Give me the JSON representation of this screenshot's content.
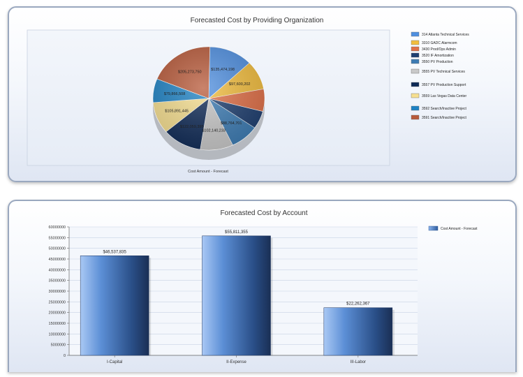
{
  "chart_data": [
    {
      "type": "pie",
      "title": "Forecasted Cost by Providing Organization",
      "xlabel": "Cost Amount - Forecast",
      "legend_position": "right",
      "slices": [
        {
          "name": "314 Atlanta Technical Services",
          "value": 135474198,
          "label": "$135,474,198",
          "color": "#4f8fe0"
        },
        {
          "name": "3310 GADC Alarmcom",
          "value": 97600202,
          "label": "$97,600,202",
          "color": "#f2bd3e"
        },
        {
          "name": "3430 Prod/Ops Admin",
          "value": 75000000,
          "label": "",
          "color": "#e07048"
        },
        {
          "name": "3520 IF Amortization",
          "value": 60000000,
          "label": "",
          "color": "#1f3f70"
        },
        {
          "name": "3550 PV Production",
          "value": 88764701,
          "label": "$88,764,701",
          "color": "#3d7cb4"
        },
        {
          "name": "3555 PV Technical Services",
          "value": 102140233,
          "label": "$102,140,233",
          "color": "#c9c9c9"
        },
        {
          "name": "3557 PV Production Support",
          "value": 122059395,
          "label": "$122,059,395",
          "color": "#0f2a56"
        },
        {
          "name": "3559 Las Vegas Data Center",
          "value": 105891445,
          "label": "$105,891,445",
          "color": "#f6df90"
        },
        {
          "name": "3592 Search/Inactive Project",
          "value": 79866508,
          "label": "$79,866,508",
          "color": "#1e82c4"
        },
        {
          "name": "3591 Search/Inactive Project",
          "value": 205273750,
          "label": "$205,273,750",
          "color": "#b85a3a"
        }
      ]
    },
    {
      "type": "bar",
      "title": "Forecasted Cost by Account",
      "categories": [
        "I-Capital",
        "II-Expense",
        "III-Labor"
      ],
      "series": [
        {
          "name": "Cost Amount - Forecast",
          "values": [
            46537835,
            55811355,
            22262367
          ],
          "labels": [
            "$46,537,835",
            "$55,811,355",
            "$22,262,367"
          ]
        }
      ],
      "ylim": [
        0,
        60000000
      ],
      "yticks": [
        "60000000",
        "55000000",
        "50000000",
        "45000000",
        "40000000",
        "35000000",
        "30000000",
        "25000000",
        "20000000",
        "15000000",
        "10000000",
        "5000000",
        "0"
      ],
      "legend_position": "right",
      "grid": true
    }
  ]
}
